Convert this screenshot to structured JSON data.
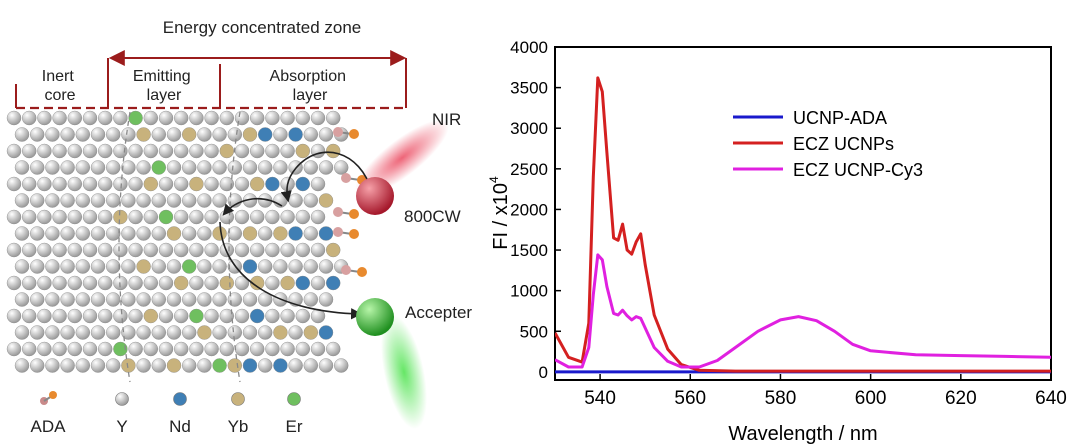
{
  "schematic": {
    "zone_title": "Energy concentrated zone",
    "regions": [
      {
        "id": "inert",
        "lines": [
          "Inert",
          "core"
        ]
      },
      {
        "id": "emitting",
        "lines": [
          "Emitting",
          "layer"
        ]
      },
      {
        "id": "absorption",
        "lines": [
          "Absorption",
          "layer"
        ]
      }
    ],
    "labels": {
      "nir": "NIR",
      "dye": "800CW",
      "acceptor": "Accepter"
    },
    "legend": [
      {
        "label": "ADA",
        "color": "#c98a8a",
        "icon": "ada-molecule-icon"
      },
      {
        "label": "Y",
        "color": "#c9c9c9",
        "icon": "y-ion-sphere-icon"
      },
      {
        "label": "Nd",
        "color": "#3f7fb5",
        "icon": "nd-ion-sphere-icon"
      },
      {
        "label": "Yb",
        "color": "#c8b27c",
        "icon": "yb-ion-sphere-icon"
      },
      {
        "label": "Er",
        "color": "#6fbf5f",
        "icon": "er-ion-sphere-icon"
      }
    ],
    "colors": {
      "bracket": "#9b1c1c",
      "nir_glow": "#e8314a",
      "dye_sphere": "#c2283a",
      "acceptor_sphere": "#2fb52f"
    }
  },
  "chart_data": {
    "type": "line",
    "title": "",
    "xlabel": "Wavelength / nm",
    "ylabel": "FI / x10",
    "ylabel_sup": "4",
    "xlim": [
      530,
      640
    ],
    "ylim": [
      -100,
      4000
    ],
    "xticks": [
      540,
      560,
      580,
      600,
      620,
      640
    ],
    "yticks": [
      0,
      500,
      1000,
      1500,
      2000,
      2500,
      3000,
      3500,
      4000
    ],
    "legend_position": "upper-middle",
    "series": [
      {
        "name": "UCNP-ADA",
        "color": "#1a1acc",
        "x": [
          530,
          640
        ],
        "y": [
          0,
          0
        ]
      },
      {
        "name": "ECZ UCNPs",
        "color": "#d42020",
        "x": [
          530,
          533,
          536,
          537.5,
          538.5,
          539.5,
          540.5,
          541.5,
          543,
          544,
          545,
          546,
          547,
          548,
          549,
          550,
          552,
          555,
          558,
          562,
          570,
          600,
          640
        ],
        "y": [
          480,
          180,
          120,
          600,
          2400,
          3620,
          3450,
          2700,
          1650,
          1620,
          1820,
          1500,
          1450,
          1600,
          1700,
          1320,
          700,
          280,
          90,
          20,
          10,
          10,
          10
        ]
      },
      {
        "name": "ECZ UCNP-Cy3",
        "color": "#e020e0",
        "x": [
          530,
          533,
          536,
          537.5,
          538.5,
          539.5,
          540.5,
          541.5,
          543,
          544,
          545,
          546,
          547,
          548,
          549,
          550,
          552,
          555,
          558,
          562,
          566,
          570,
          575,
          580,
          584,
          588,
          592,
          596,
          600,
          610,
          620,
          630,
          640
        ],
        "y": [
          150,
          60,
          60,
          300,
          950,
          1440,
          1380,
          1050,
          720,
          700,
          760,
          690,
          640,
          680,
          660,
          540,
          300,
          130,
          60,
          60,
          140,
          300,
          500,
          640,
          680,
          630,
          500,
          340,
          260,
          210,
          200,
          190,
          180
        ]
      }
    ]
  }
}
